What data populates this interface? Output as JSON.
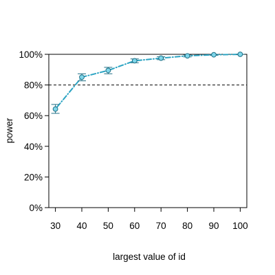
{
  "chart_data": {
    "type": "line",
    "xlabel": "largest value of id",
    "ylabel": "power",
    "x": [
      30,
      40,
      50,
      60,
      70,
      80,
      90,
      100
    ],
    "xticks": [
      "30",
      "40",
      "50",
      "60",
      "70",
      "80",
      "90",
      "100"
    ],
    "xlim": [
      27.5,
      102.5
    ],
    "ylim": [
      0,
      1
    ],
    "yticks": [
      0,
      0.2,
      0.4,
      0.6,
      0.8,
      1.0
    ],
    "ytick_labels": [
      "0%",
      "20%",
      "40%",
      "60%",
      "80%",
      "100%"
    ],
    "reference_line": {
      "y": 0.8,
      "style": "dashed",
      "color": "#000000"
    },
    "grid": false,
    "series": [
      {
        "values": [
          0.643,
          0.851,
          0.895,
          0.958,
          0.975,
          0.99,
          0.997,
          1.0
        ],
        "ci_low": [
          0.615,
          0.827,
          0.873,
          0.945,
          0.965,
          0.983,
          0.994,
          0.999
        ],
        "ci_high": [
          0.673,
          0.873,
          0.915,
          0.97,
          0.984,
          0.995,
          0.999,
          1.0
        ],
        "line_color": "#2aa3c2",
        "marker_fill": "#7fd6ea",
        "marker_edge": "#1f6f85",
        "line_style": "dot-dash"
      }
    ]
  }
}
